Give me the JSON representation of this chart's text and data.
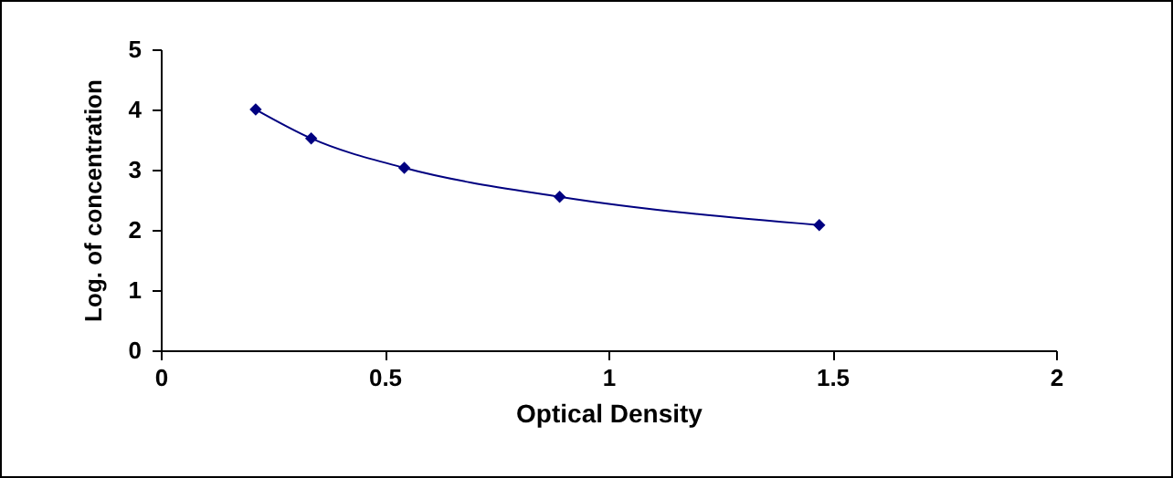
{
  "chart_data": {
    "type": "line",
    "xlabel": "Optical Density",
    "ylabel": "Log. of concentration",
    "x": [
      0.212,
      0.336,
      0.544,
      0.891,
      1.471
    ],
    "series": [
      {
        "color": "#000080",
        "values": [
          4.0,
          3.52,
          3.03,
          2.55,
          2.08
        ]
      }
    ],
    "xlim": [
      0,
      2
    ],
    "xticks": [
      0,
      0.5,
      1,
      1.5,
      2
    ],
    "ylim": [
      0,
      5
    ],
    "yticks": [
      0,
      1,
      2,
      3,
      4,
      5
    ],
    "grid": false,
    "legend": false,
    "marker": "diamond",
    "line_style": "solid"
  }
}
